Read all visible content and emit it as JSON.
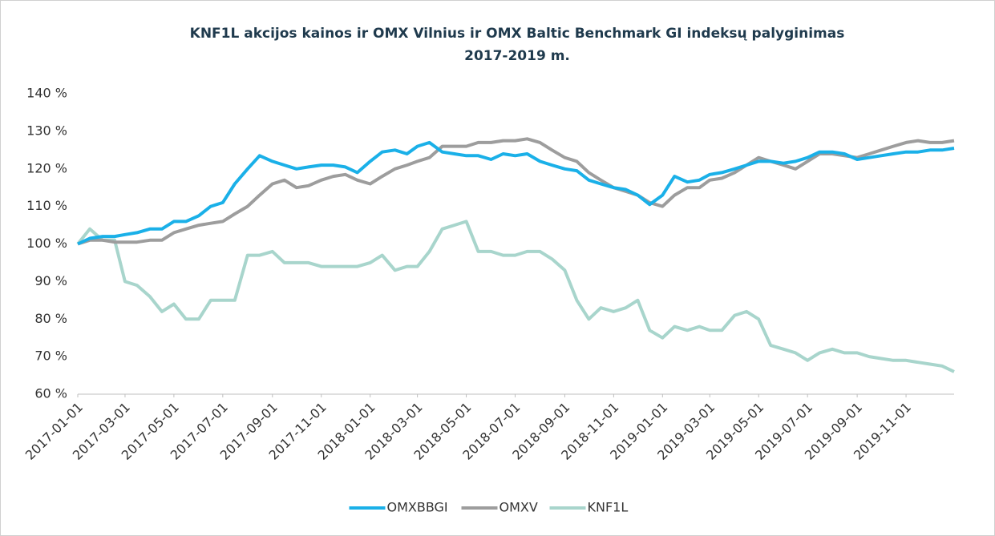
{
  "chart_data": {
    "type": "line",
    "title": [
      "KNF1L akcijos kainos ir OMX Vilnius ir OMX Baltic Benchmark GI indeksų palyginimas",
      "2017-2019 m."
    ],
    "x": [
      "2017-01-01",
      "2017-01-16",
      "2017-02-01",
      "2017-02-16",
      "2017-03-01",
      "2017-03-16",
      "2017-04-01",
      "2017-04-16",
      "2017-05-01",
      "2017-05-16",
      "2017-06-01",
      "2017-06-16",
      "2017-07-01",
      "2017-07-16",
      "2017-08-01",
      "2017-08-16",
      "2017-09-01",
      "2017-09-16",
      "2017-10-01",
      "2017-10-16",
      "2017-11-01",
      "2017-11-16",
      "2017-12-01",
      "2017-12-16",
      "2018-01-01",
      "2018-01-16",
      "2018-02-01",
      "2018-02-16",
      "2018-03-01",
      "2018-03-16",
      "2018-04-01",
      "2018-04-16",
      "2018-05-01",
      "2018-05-16",
      "2018-06-01",
      "2018-06-16",
      "2018-07-01",
      "2018-07-16",
      "2018-08-01",
      "2018-08-16",
      "2018-09-01",
      "2018-09-16",
      "2018-10-01",
      "2018-10-16",
      "2018-11-01",
      "2018-11-16",
      "2018-12-01",
      "2018-12-16",
      "2019-01-01",
      "2019-01-16",
      "2019-02-01",
      "2019-02-16",
      "2019-03-01",
      "2019-03-16",
      "2019-04-01",
      "2019-04-16",
      "2019-05-01",
      "2019-05-16",
      "2019-06-01",
      "2019-06-16",
      "2019-07-01",
      "2019-07-16",
      "2019-08-01",
      "2019-08-16",
      "2019-09-01",
      "2019-09-16",
      "2019-10-01",
      "2019-10-16",
      "2019-11-01",
      "2019-11-16",
      "2019-12-01",
      "2019-12-16",
      "2019-12-31"
    ],
    "series": [
      {
        "name": "OMXBBGI",
        "color": "#1ab0e8",
        "values": [
          100,
          101.5,
          102,
          102,
          102.5,
          103,
          104,
          104,
          106,
          106,
          107.5,
          110,
          111,
          116,
          120,
          123.5,
          122,
          121,
          120,
          120.5,
          121,
          121,
          120.5,
          119,
          122,
          124.5,
          125,
          124,
          126,
          127,
          124.5,
          124,
          123.5,
          123.5,
          122.5,
          124,
          123.5,
          124,
          122,
          121,
          120,
          119.5,
          117,
          116,
          115,
          114.5,
          113,
          110.5,
          113,
          118,
          116.5,
          117,
          118.5,
          119,
          120,
          121,
          122,
          122,
          121.5,
          122,
          123,
          124.5,
          124.5,
          124,
          122.5,
          123,
          123.5,
          124,
          124.5,
          124.5,
          125,
          125,
          125.5
        ]
      },
      {
        "name": "OMXV",
        "color": "#9d9d9d",
        "values": [
          100,
          101,
          101,
          100.5,
          100.5,
          100.5,
          101,
          101,
          103,
          104,
          105,
          105.5,
          106,
          108,
          110,
          113,
          116,
          117,
          115,
          115.5,
          117,
          118,
          118.5,
          117,
          116,
          118,
          120,
          121,
          122,
          123,
          126,
          126,
          126,
          127,
          127,
          127.5,
          127.5,
          128,
          127,
          125,
          123,
          122,
          119,
          117,
          115,
          114,
          113,
          111,
          110,
          113,
          115,
          115,
          117,
          117.5,
          119,
          121,
          123,
          122,
          121,
          120,
          122,
          124,
          124,
          123.5,
          123,
          124,
          125,
          126,
          127,
          127.5,
          127,
          127,
          127.5
        ]
      },
      {
        "name": "KNF1L",
        "color": "#a8d5cc",
        "values": [
          100,
          104,
          101,
          101,
          90,
          89,
          86,
          82,
          84,
          80,
          80,
          85,
          85,
          85,
          97,
          97,
          98,
          95,
          95,
          95,
          94,
          94,
          94,
          94,
          95,
          97,
          93,
          94,
          94,
          98,
          104,
          105,
          106,
          98,
          98,
          97,
          97,
          98,
          98,
          96,
          93,
          85,
          80,
          83,
          82,
          83,
          85,
          77,
          75,
          78,
          77,
          78,
          77,
          77,
          81,
          82,
          80,
          73,
          72,
          71,
          69,
          71,
          72,
          71,
          71,
          70,
          69.5,
          69,
          69,
          68.5,
          68,
          67.5,
          66
        ]
      }
    ],
    "xlim": [
      "2017-01-01",
      "2019-12-31"
    ],
    "xticks": [
      "2017-01-01",
      "2017-03-01",
      "2017-05-01",
      "2017-07-01",
      "2017-09-01",
      "2017-11-01",
      "2018-01-01",
      "2018-03-01",
      "2018-05-01",
      "2018-07-01",
      "2018-09-01",
      "2018-11-01",
      "2019-01-01",
      "2019-03-01",
      "2019-05-01",
      "2019-07-01",
      "2019-09-01",
      "2019-11-01"
    ],
    "ylim": [
      60,
      140
    ],
    "yticks": [
      {
        "value": 60,
        "label": "60 %"
      },
      {
        "value": 70,
        "label": "70 %"
      },
      {
        "value": 80,
        "label": "80 %"
      },
      {
        "value": 90,
        "label": "90 %"
      },
      {
        "value": 100,
        "label": "100 %"
      },
      {
        "value": 110,
        "label": "110 %"
      },
      {
        "value": 120,
        "label": "120 %"
      },
      {
        "value": 130,
        "label": "130 %"
      },
      {
        "value": 140,
        "label": "140 %"
      }
    ],
    "grid": false,
    "legend": "bottom"
  }
}
